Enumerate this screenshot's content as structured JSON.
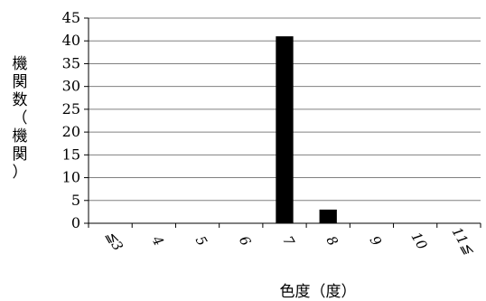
{
  "chart_data": {
    "type": "bar",
    "categories": [
      "≦3",
      "4",
      "5",
      "6",
      "7",
      "8",
      "9",
      "10",
      "11≦"
    ],
    "values": [
      0,
      0,
      0,
      0,
      41,
      3,
      0,
      0,
      0
    ],
    "xlabel": "色度（度）",
    "ylabel": "機関数（機関）",
    "ylim": [
      0,
      45
    ],
    "yticks": [
      0,
      5,
      10,
      15,
      20,
      25,
      30,
      35,
      40,
      45
    ],
    "grid": true,
    "colors": {
      "bar": "#000000",
      "grid": "#808080",
      "axis": "#000000"
    }
  }
}
